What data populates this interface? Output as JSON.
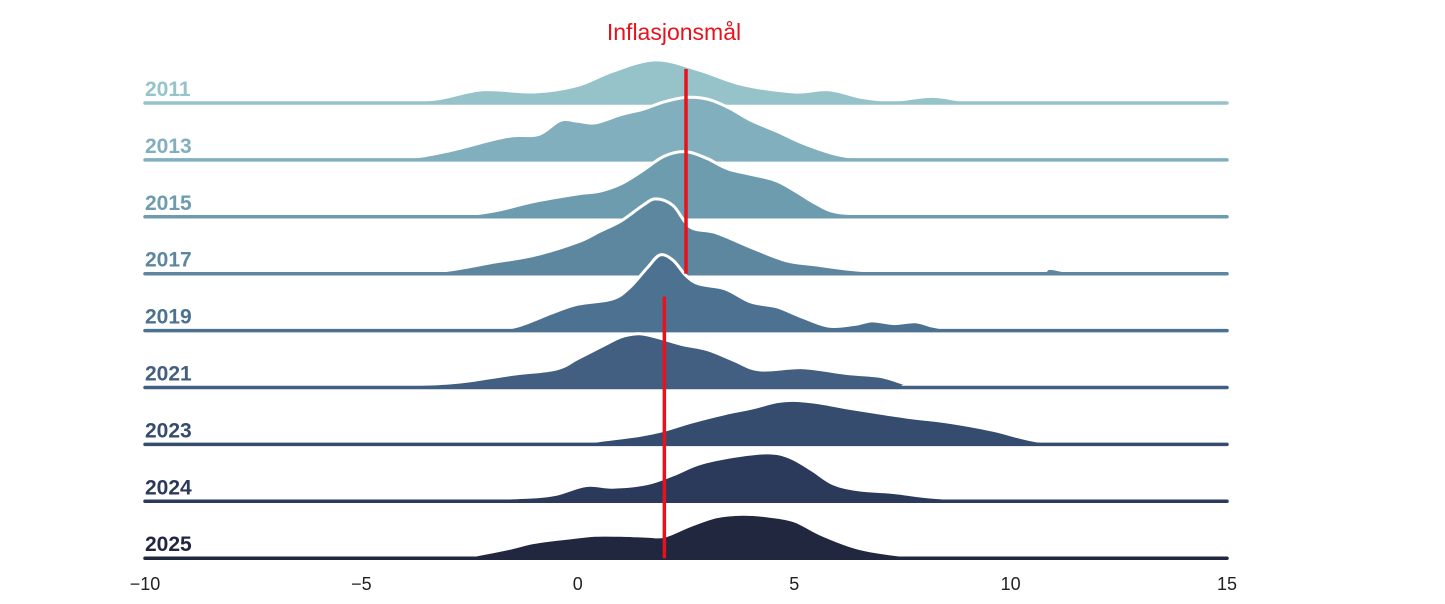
{
  "chart_data": {
    "type": "ridgeline",
    "annotation": "Inflasjonsmål",
    "xlim": [
      -10,
      15
    ],
    "xticks": [
      -10,
      -5,
      0,
      5,
      10,
      15
    ],
    "xtick_labels": [
      "−10",
      "−5",
      "0",
      "5",
      "10",
      "15"
    ],
    "target_line": [
      {
        "x": 2.5,
        "from_series": "2011",
        "to_series": "2017"
      },
      {
        "x": 2.0,
        "from_series": "2019",
        "to_series": "2025"
      }
    ],
    "series": [
      {
        "name": "2011",
        "color": "#95c3c9",
        "labelcolor": "#95c3c9",
        "ridge_points": [
          [
            -10,
            0
          ],
          [
            -8,
            0.01
          ],
          [
            -7.3,
            0.04
          ],
          [
            -6.5,
            0.01
          ],
          [
            -5,
            0.01
          ],
          [
            -4,
            0.05
          ],
          [
            -3.2,
            0.1
          ],
          [
            -2.2,
            0.3
          ],
          [
            -1,
            0.25
          ],
          [
            0,
            0.4
          ],
          [
            0.8,
            0.72
          ],
          [
            1.8,
            0.98
          ],
          [
            2.8,
            0.75
          ],
          [
            3.8,
            0.42
          ],
          [
            5,
            0.25
          ],
          [
            5.8,
            0.3
          ],
          [
            6.6,
            0.12
          ],
          [
            7.3,
            0.06
          ],
          [
            8.2,
            0.15
          ],
          [
            9.2,
            0.03
          ],
          [
            11,
            0.01
          ],
          [
            15,
            0
          ]
        ]
      },
      {
        "name": "2013",
        "color": "#81afbd",
        "labelcolor": "#81afbd",
        "ridge_points": [
          [
            -10,
            0
          ],
          [
            -6,
            0.01
          ],
          [
            -4,
            0.05
          ],
          [
            -3,
            0.2
          ],
          [
            -2,
            0.45
          ],
          [
            -1.5,
            0.55
          ],
          [
            -0.9,
            0.58
          ],
          [
            -0.4,
            0.9
          ],
          [
            0,
            0.88
          ],
          [
            0.4,
            0.84
          ],
          [
            1,
            1.03
          ],
          [
            1.5,
            1.15
          ],
          [
            2,
            1.32
          ],
          [
            2.5,
            1.42
          ],
          [
            3,
            1.38
          ],
          [
            3.5,
            1.18
          ],
          [
            4,
            0.9
          ],
          [
            4.6,
            0.65
          ],
          [
            5.2,
            0.38
          ],
          [
            6,
            0.12
          ],
          [
            6.8,
            0.04
          ],
          [
            8.5,
            0.04
          ],
          [
            9,
            0.02
          ],
          [
            10,
            0
          ],
          [
            15,
            0
          ]
        ]
      },
      {
        "name": "2015",
        "color": "#6e9caf",
        "labelcolor": "#6e9caf",
        "ridge_points": [
          [
            -10,
            0
          ],
          [
            -5,
            0.01
          ],
          [
            -3,
            0.03
          ],
          [
            -2,
            0.12
          ],
          [
            -1,
            0.35
          ],
          [
            0,
            0.52
          ],
          [
            0.5,
            0.58
          ],
          [
            1,
            0.75
          ],
          [
            1.5,
            1.05
          ],
          [
            2,
            1.38
          ],
          [
            2.5,
            1.48
          ],
          [
            3,
            1.32
          ],
          [
            3.5,
            1.08
          ],
          [
            4.5,
            0.85
          ],
          [
            5,
            0.6
          ],
          [
            5.5,
            0.3
          ],
          [
            6,
            0.1
          ],
          [
            7,
            0.06
          ],
          [
            8,
            0.05
          ],
          [
            10,
            0
          ],
          [
            15,
            0
          ]
        ]
      },
      {
        "name": "2017",
        "color": "#5c879f",
        "labelcolor": "#5c879f",
        "ridge_points": [
          [
            -10,
            0
          ],
          [
            -6,
            0
          ],
          [
            -4,
            0.02
          ],
          [
            -3,
            0.08
          ],
          [
            -2,
            0.25
          ],
          [
            -1,
            0.42
          ],
          [
            0,
            0.72
          ],
          [
            0.5,
            0.96
          ],
          [
            1,
            1.2
          ],
          [
            1.5,
            1.55
          ],
          [
            1.8,
            1.7
          ],
          [
            2.2,
            1.55
          ],
          [
            2.6,
            1.06
          ],
          [
            3.2,
            0.93
          ],
          [
            4,
            0.6
          ],
          [
            4.8,
            0.3
          ],
          [
            5.5,
            0.2
          ],
          [
            6.5,
            0.08
          ],
          [
            8,
            0.02
          ],
          [
            10.5,
            0.02
          ],
          [
            10.9,
            0.12
          ],
          [
            11.4,
            0.03
          ],
          [
            12,
            0
          ],
          [
            15,
            0
          ]
        ]
      },
      {
        "name": "2019",
        "color": "#4d7191",
        "labelcolor": "#4d7191",
        "ridge_points": [
          [
            -10,
            0
          ],
          [
            -3,
            0
          ],
          [
            -2,
            0.02
          ],
          [
            -1.4,
            0.1
          ],
          [
            -0.6,
            0.4
          ],
          [
            0,
            0.6
          ],
          [
            0.8,
            0.72
          ],
          [
            1.2,
            0.98
          ],
          [
            1.6,
            1.42
          ],
          [
            1.9,
            1.72
          ],
          [
            2.2,
            1.6
          ],
          [
            2.5,
            1.25
          ],
          [
            2.8,
            1.06
          ],
          [
            3.4,
            0.95
          ],
          [
            4,
            0.65
          ],
          [
            4.6,
            0.54
          ],
          [
            5.2,
            0.3
          ],
          [
            5.8,
            0.1
          ],
          [
            6.4,
            0.14
          ],
          [
            6.8,
            0.22
          ],
          [
            7.3,
            0.16
          ],
          [
            7.8,
            0.2
          ],
          [
            8.2,
            0.1
          ],
          [
            8.6,
            0.03
          ],
          [
            9,
            0
          ],
          [
            15,
            0
          ]
        ]
      },
      {
        "name": "2021",
        "color": "#425e80",
        "labelcolor": "#425e80",
        "ridge_points": [
          [
            -10,
            0
          ],
          [
            -5,
            0
          ],
          [
            -4,
            0.05
          ],
          [
            -3,
            0.1
          ],
          [
            -2.5,
            0.15
          ],
          [
            -1.5,
            0.3
          ],
          [
            -0.5,
            0.42
          ],
          [
            0,
            0.66
          ],
          [
            0.6,
            0.96
          ],
          [
            1,
            1.15
          ],
          [
            1.4,
            1.22
          ],
          [
            1.8,
            1.15
          ],
          [
            2.4,
            0.98
          ],
          [
            3,
            0.86
          ],
          [
            3.6,
            0.62
          ],
          [
            4.2,
            0.4
          ],
          [
            5.2,
            0.45
          ],
          [
            6.2,
            0.32
          ],
          [
            7,
            0.25
          ],
          [
            7.6,
            0.08
          ],
          [
            8.2,
            0
          ],
          [
            15,
            0
          ]
        ]
      },
      {
        "name": "2023",
        "color": "#354c6e",
        "labelcolor": "#354c6e",
        "ridge_points": [
          [
            -10,
            0
          ],
          [
            -1,
            0
          ],
          [
            0,
            0.02
          ],
          [
            0.6,
            0.1
          ],
          [
            1.4,
            0.2
          ],
          [
            2,
            0.32
          ],
          [
            2.6,
            0.5
          ],
          [
            3.4,
            0.7
          ],
          [
            4,
            0.82
          ],
          [
            4.6,
            0.97
          ],
          [
            5,
            1.0
          ],
          [
            5.6,
            0.94
          ],
          [
            6.4,
            0.8
          ],
          [
            7.6,
            0.62
          ],
          [
            8.6,
            0.5
          ],
          [
            9.6,
            0.32
          ],
          [
            10.6,
            0.08
          ],
          [
            11.6,
            0.03
          ],
          [
            13,
            0
          ],
          [
            15,
            0
          ]
        ]
      },
      {
        "name": "2024",
        "color": "#2b3a5a",
        "labelcolor": "#2b3a5a",
        "ridge_points": [
          [
            -10,
            0
          ],
          [
            -5,
            0
          ],
          [
            -4,
            0.04
          ],
          [
            -3,
            0.03
          ],
          [
            -2,
            0.06
          ],
          [
            -1,
            0.1
          ],
          [
            -0.5,
            0.16
          ],
          [
            0.2,
            0.36
          ],
          [
            0.8,
            0.32
          ],
          [
            1.6,
            0.4
          ],
          [
            2.2,
            0.6
          ],
          [
            2.8,
            0.85
          ],
          [
            3.6,
            1.02
          ],
          [
            4.4,
            1.1
          ],
          [
            4.9,
            1.0
          ],
          [
            5.4,
            0.72
          ],
          [
            5.9,
            0.4
          ],
          [
            6.5,
            0.26
          ],
          [
            7.3,
            0.2
          ],
          [
            8.1,
            0.1
          ],
          [
            9,
            0.05
          ],
          [
            11,
            0.02
          ],
          [
            13,
            0
          ],
          [
            15,
            0
          ]
        ]
      },
      {
        "name": "2025",
        "color": "#222740",
        "labelcolor": "#222740",
        "ridge_points": [
          [
            -10,
            0
          ],
          [
            -3,
            0
          ],
          [
            -2.5,
            0.05
          ],
          [
            -1.6,
            0.22
          ],
          [
            -1,
            0.36
          ],
          [
            -0.2,
            0.46
          ],
          [
            0.4,
            0.52
          ],
          [
            1,
            0.52
          ],
          [
            1.6,
            0.5
          ],
          [
            2,
            0.5
          ],
          [
            2.6,
            0.74
          ],
          [
            3.2,
            0.94
          ],
          [
            3.8,
            1.0
          ],
          [
            4.4,
            0.96
          ],
          [
            5,
            0.85
          ],
          [
            5.6,
            0.55
          ],
          [
            6.4,
            0.25
          ],
          [
            7.2,
            0.1
          ],
          [
            8,
            0.04
          ],
          [
            10,
            0
          ],
          [
            15,
            0
          ]
        ]
      }
    ]
  }
}
